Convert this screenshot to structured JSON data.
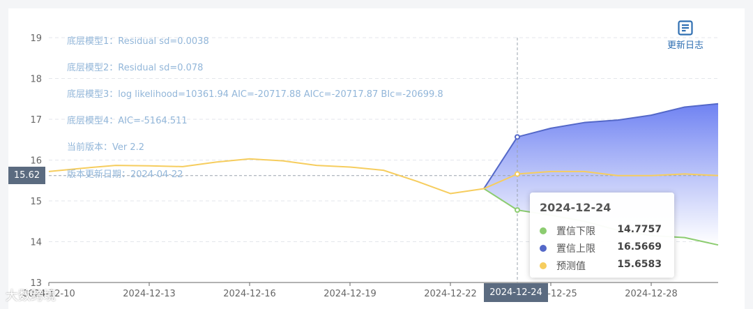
{
  "chart_data": {
    "type": "line",
    "x": [
      "2024-12-10",
      "2024-12-11",
      "2024-12-12",
      "2024-12-13",
      "2024-12-14",
      "2024-12-15",
      "2024-12-16",
      "2024-12-17",
      "2024-12-18",
      "2024-12-19",
      "2024-12-20",
      "2024-12-21",
      "2024-12-22",
      "2024-12-23",
      "2024-12-24",
      "2024-12-25",
      "2024-12-26",
      "2024-12-27",
      "2024-12-28",
      "2024-12-29",
      "2024-12-30"
    ],
    "series": [
      {
        "name": "预测值",
        "values": [
          15.72,
          15.8,
          15.87,
          15.86,
          15.84,
          15.95,
          16.03,
          15.98,
          15.87,
          15.83,
          15.75,
          15.48,
          15.18,
          15.3,
          15.6583,
          15.72,
          15.72,
          15.62,
          15.62,
          15.66,
          15.62
        ]
      },
      {
        "name": "置信下限",
        "values": [
          null,
          null,
          null,
          null,
          null,
          null,
          null,
          null,
          null,
          null,
          null,
          null,
          null,
          15.3,
          14.7757,
          14.65,
          14.5,
          14.28,
          14.15,
          14.1,
          13.92
        ]
      },
      {
        "name": "置信上限",
        "values": [
          null,
          null,
          null,
          null,
          null,
          null,
          null,
          null,
          null,
          null,
          null,
          null,
          null,
          15.3,
          16.5669,
          16.78,
          16.92,
          16.98,
          17.1,
          17.3,
          17.38
        ]
      }
    ],
    "ylim": [
      13,
      19
    ],
    "yticks": [
      13,
      14,
      15,
      16,
      17,
      18,
      19
    ],
    "xticks": [
      "2024-12-10",
      "2024-12-13",
      "2024-12-16",
      "2024-12-19",
      "2024-12-22",
      "2024-12-25",
      "2024-12-28"
    ],
    "reference_value": 15.62,
    "grid": true,
    "colors": {
      "预测值": "#f6cd5e",
      "置信下限": "#8ccc70",
      "置信上限": "#5468c8",
      "band_top": "#6f82f2",
      "band_bottom": "#ffffff"
    }
  },
  "annotations": [
    "底层模型1：Residual sd=0.0038",
    "底层模型2：Residual sd=0.078",
    "底层模型3：log likelihood=10361.94 AIC=-20717.88 AICc=-20717.87 BIc=-20699.8",
    "底层模型4：AIC=-5164.511",
    "当前版本：Ver 2.2",
    "版本更新日期：2024-04-22"
  ],
  "changelog_label": "更新日志",
  "tooltip": {
    "title": "2024-12-24",
    "rows": [
      {
        "label": "置信下限",
        "value": "14.7757",
        "color": "#8ccc70"
      },
      {
        "label": "置信上限",
        "value": "16.5669",
        "color": "#5468c8"
      },
      {
        "label": "预测值",
        "value": "15.6583",
        "color": "#f6cd5e"
      }
    ]
  },
  "axis_pointer": {
    "x_label": "2024-12-24",
    "y_label": "15.62"
  },
  "watermark": "大数跨境"
}
